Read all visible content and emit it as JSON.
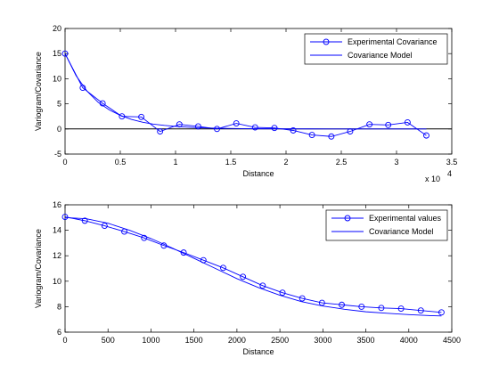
{
  "figure_background": "#ffffff",
  "chart_data": [
    {
      "type": "line",
      "id": "top",
      "xlabel": "Distance",
      "ylabel": "Variogram/Covariance",
      "xlim": [
        0,
        35000
      ],
      "ylim": [
        -5,
        20
      ],
      "xticks": [
        0,
        5000,
        10000,
        15000,
        20000,
        25000,
        30000,
        35000
      ],
      "xtick_labels": [
        "0",
        "0.5",
        "1",
        "1.5",
        "2",
        "2.5",
        "3",
        "3.5"
      ],
      "yticks": [
        -5,
        0,
        5,
        10,
        15,
        20
      ],
      "ytick_labels": [
        "-5",
        "0",
        "5",
        "10",
        "15",
        "20"
      ],
      "x_exponent_base": "x 10",
      "x_exponent_power": "4",
      "grid": false,
      "legend_position": "top-right",
      "zero_line": true,
      "series": [
        {
          "name": "Experimental Covariance",
          "color": "#0000ff",
          "style": "line-with-circle-markers",
          "x": [
            0,
            1600,
            3400,
            5150,
            6900,
            8600,
            10350,
            12050,
            13750,
            15500,
            17200,
            18950,
            20650,
            22350,
            24100,
            25800,
            27550,
            29250,
            31000,
            32700
          ],
          "y": [
            15,
            8.2,
            5.1,
            2.5,
            2.4,
            -0.5,
            0.9,
            0.5,
            0.0,
            1.1,
            0.3,
            0.2,
            -0.3,
            -1.2,
            -1.5,
            -0.5,
            0.9,
            0.8,
            1.3,
            -1.3
          ]
        },
        {
          "name": "Covariance Model",
          "color": "#0000ff",
          "style": "line",
          "x": [
            0,
            1000,
            2000,
            3000,
            4000,
            5000,
            6000,
            7000,
            8000,
            9000,
            10000,
            12000,
            14000,
            16000,
            18000,
            20000,
            22000,
            24000,
            26000,
            28000,
            30000,
            32700
          ],
          "y": [
            15,
            10.6,
            7.5,
            5.3,
            3.8,
            2.7,
            1.9,
            1.35,
            0.95,
            0.7,
            0.5,
            0.25,
            0.12,
            0.06,
            0.03,
            0.02,
            0.01,
            0.0,
            0.0,
            0.0,
            0.0,
            0.0
          ]
        }
      ]
    },
    {
      "type": "line",
      "id": "bottom",
      "xlabel": "Distance",
      "ylabel": "Variogram/Covariance",
      "xlim": [
        0,
        4500
      ],
      "ylim": [
        6,
        16
      ],
      "xticks": [
        0,
        500,
        1000,
        1500,
        2000,
        2500,
        3000,
        3500,
        4000,
        4500
      ],
      "xtick_labels": [
        "0",
        "500",
        "1000",
        "1500",
        "2000",
        "2500",
        "3000",
        "3500",
        "4000",
        "4500"
      ],
      "yticks": [
        6,
        8,
        10,
        12,
        14,
        16
      ],
      "ytick_labels": [
        "6",
        "8",
        "10",
        "12",
        "14",
        "16"
      ],
      "grid": false,
      "legend_position": "top-right",
      "series": [
        {
          "name": "Experimental values",
          "color": "#0000ff",
          "style": "line-with-circle-markers",
          "x": [
            0,
            230,
            460,
            690,
            920,
            1150,
            1380,
            1610,
            1840,
            2070,
            2300,
            2530,
            2760,
            2990,
            3220,
            3450,
            3680,
            3910,
            4140,
            4380
          ],
          "y": [
            15.05,
            14.75,
            14.35,
            13.9,
            13.4,
            12.8,
            12.25,
            11.65,
            11.05,
            10.35,
            9.65,
            9.1,
            8.65,
            8.3,
            8.15,
            8.0,
            7.9,
            7.85,
            7.7,
            7.55
          ]
        },
        {
          "name": "Covariance Model",
          "color": "#0000ff",
          "style": "line",
          "x": [
            0,
            250,
            500,
            750,
            1000,
            1250,
            1500,
            1750,
            2000,
            2250,
            2500,
            2750,
            3000,
            3250,
            3500,
            3750,
            4000,
            4250,
            4380
          ],
          "y": [
            15.0,
            14.9,
            14.55,
            14.0,
            13.35,
            12.6,
            11.8,
            11.0,
            10.2,
            9.5,
            8.9,
            8.4,
            8.05,
            7.8,
            7.6,
            7.48,
            7.38,
            7.3,
            7.27
          ]
        }
      ]
    }
  ]
}
